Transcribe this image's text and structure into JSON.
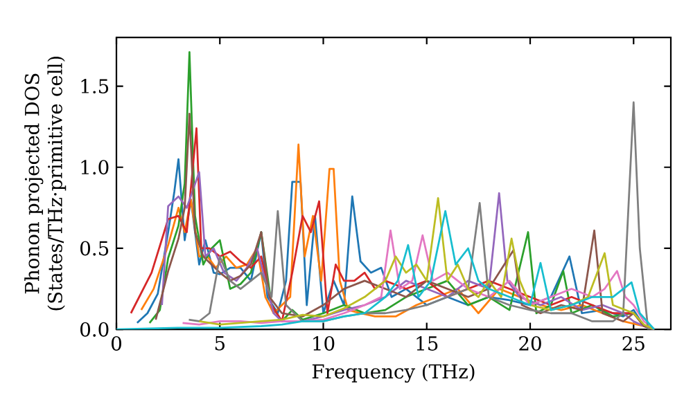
{
  "chart_data": {
    "type": "line",
    "xlabel": "Frequency (THz)",
    "ylabel": "Phonon projected DOS (States/THz·primitive cell)",
    "xlim": [
      0,
      26.8
    ],
    "ylim": [
      0,
      1.8
    ],
    "xticks": [
      0,
      5,
      10,
      15,
      20,
      25
    ],
    "yticks": [
      {
        "value": 0,
        "label": "0.0"
      },
      {
        "value": 0.5,
        "label": "0.5"
      },
      {
        "value": 1,
        "label": "1.0"
      },
      {
        "value": 1.5,
        "label": "1.5"
      }
    ],
    "series": [
      {
        "color": "#1f77b4",
        "x": [
          1,
          1.5,
          2,
          2.5,
          2.8,
          3.0,
          3.3,
          3.6,
          4.0,
          4.3,
          4.7,
          5.0,
          5.5,
          6.0,
          6.5,
          7.0,
          7.3,
          7.8,
          8.2,
          8.5,
          8.9,
          9.2,
          9.6,
          10.0,
          10.5,
          11.0,
          11.4,
          11.8,
          12.3,
          12.8,
          13.3,
          14,
          15,
          16,
          17,
          18,
          19,
          20,
          21,
          21.9,
          22.5,
          23.5,
          24.5,
          25,
          25.5,
          26
        ],
        "values": [
          0.04,
          0.1,
          0.22,
          0.6,
          0.85,
          1.05,
          0.55,
          0.8,
          0.4,
          0.55,
          0.35,
          0.34,
          0.38,
          0.38,
          0.3,
          0.6,
          0.2,
          0.1,
          0.3,
          0.91,
          0.91,
          0.15,
          0.7,
          0.1,
          0.3,
          0.15,
          0.82,
          0.42,
          0.35,
          0.38,
          0.2,
          0.25,
          0.15,
          0.2,
          0.15,
          0.2,
          0.18,
          0.15,
          0.2,
          0.45,
          0.1,
          0.12,
          0.08,
          0.12,
          0.02,
          0
        ]
      },
      {
        "color": "#ff7f0e",
        "x": [
          1.2,
          1.8,
          2.5,
          3.0,
          3.3,
          3.6,
          4.0,
          4.4,
          4.8,
          5.3,
          5.8,
          6.3,
          6.8,
          7.2,
          7.6,
          8.0,
          8.4,
          8.8,
          9.1,
          9.5,
          9.9,
          10.3,
          10.5,
          10.8,
          11.2,
          11.8,
          12.5,
          13.5,
          14.5,
          15.5,
          16.5,
          17.5,
          18.5,
          19.5,
          20.5,
          21.5,
          22.5,
          23.5,
          24.5,
          25.5,
          26
        ],
        "values": [
          0.12,
          0.25,
          0.52,
          0.75,
          0.6,
          0.8,
          0.45,
          0.45,
          0.38,
          0.45,
          0.38,
          0.4,
          0.5,
          0.2,
          0.1,
          0.15,
          0.2,
          1.14,
          0.45,
          0.7,
          0.3,
          0.99,
          0.99,
          0.3,
          0.12,
          0.1,
          0.08,
          0.08,
          0.15,
          0.2,
          0.25,
          0.1,
          0.25,
          0.2,
          0.15,
          0.12,
          0.15,
          0.1,
          0.05,
          0.02,
          0
        ]
      },
      {
        "color": "#2ca02c",
        "x": [
          1.6,
          2.1,
          2.5,
          3.0,
          3.3,
          3.53,
          3.8,
          4.2,
          4.6,
          5.0,
          5.5,
          6.0,
          6.5,
          7.0,
          7.5,
          8.0,
          8.5,
          9,
          10,
          11,
          12,
          13,
          14,
          15,
          16,
          17,
          18,
          19,
          19.9,
          20.3,
          21,
          21.6,
          22,
          23,
          24,
          25,
          25.5,
          26
        ],
        "values": [
          0.04,
          0.12,
          0.44,
          0.64,
          0.9,
          1.71,
          0.7,
          0.4,
          0.5,
          0.55,
          0.25,
          0.28,
          0.35,
          0.6,
          0.15,
          0.05,
          0.12,
          0.06,
          0.1,
          0.15,
          0.1,
          0.12,
          0.2,
          0.25,
          0.3,
          0.15,
          0.2,
          0.12,
          0.6,
          0.1,
          0.15,
          0.36,
          0.1,
          0.15,
          0.08,
          0.1,
          0.02,
          0
        ]
      },
      {
        "color": "#d62728",
        "x": [
          0.7,
          1.7,
          2.5,
          3.0,
          3.4,
          3.87,
          4.1,
          4.5,
          5.0,
          5.5,
          6.0,
          6.5,
          7.0,
          7.5,
          8.0,
          8.5,
          9.0,
          9.4,
          9.8,
          10.2,
          10.6,
          11.0,
          11.5,
          12,
          12.5,
          13,
          14,
          15,
          16,
          17,
          18,
          19,
          20,
          21,
          22,
          23,
          24,
          25,
          25.5,
          26
        ],
        "values": [
          0.1,
          0.35,
          0.68,
          0.7,
          0.6,
          1.24,
          0.5,
          0.5,
          0.45,
          0.48,
          0.42,
          0.38,
          0.45,
          0.15,
          0.05,
          0.35,
          0.7,
          0.6,
          0.79,
          0.1,
          0.4,
          0.3,
          0.3,
          0.35,
          0.25,
          0.3,
          0.25,
          0.3,
          0.2,
          0.25,
          0.3,
          0.25,
          0.2,
          0.15,
          0.2,
          0.15,
          0.1,
          0.1,
          0.02,
          0
        ]
      },
      {
        "color": "#9467bd",
        "x": [
          2.2,
          2.5,
          3.0,
          3.4,
          4.0,
          4.3,
          4.7,
          5.2,
          5.8,
          6.3,
          6.8,
          7.2,
          7.6,
          8,
          9,
          10,
          11,
          12,
          13,
          14,
          15,
          16,
          17,
          18,
          18.5,
          18.9,
          19.5,
          20.5,
          21.5,
          22.5,
          23.5,
          24.5,
          25,
          25.5,
          26
        ],
        "values": [
          0.15,
          0.76,
          0.82,
          0.75,
          0.97,
          0.45,
          0.5,
          0.35,
          0.3,
          0.38,
          0.5,
          0.3,
          0.1,
          0.05,
          0.05,
          0.08,
          0.12,
          0.15,
          0.2,
          0.3,
          0.25,
          0.2,
          0.3,
          0.25,
          0.84,
          0.3,
          0.2,
          0.15,
          0.2,
          0.12,
          0.15,
          0.1,
          0.05,
          0.02,
          0
        ]
      },
      {
        "color": "#8c564b",
        "x": [
          1.9,
          2.5,
          3.0,
          3.3,
          3.53,
          3.8,
          4.2,
          4.6,
          5.0,
          5.5,
          6.0,
          6.5,
          7.0,
          7.4,
          8,
          9,
          10,
          11,
          12,
          13,
          14,
          15,
          16,
          17,
          18,
          19.2,
          19.6,
          20.5,
          21.5,
          22.5,
          23.1,
          23.5,
          24.5,
          25,
          25.5,
          26
        ],
        "values": [
          0.06,
          0.36,
          0.56,
          0.75,
          1.33,
          0.6,
          0.45,
          0.4,
          0.35,
          0.3,
          0.33,
          0.4,
          0.6,
          0.2,
          0.1,
          0.08,
          0.15,
          0.25,
          0.3,
          0.25,
          0.2,
          0.3,
          0.25,
          0.2,
          0.25,
          0.49,
          0.15,
          0.1,
          0.15,
          0.12,
          0.61,
          0.1,
          0.05,
          0.1,
          0.02,
          0
        ]
      },
      {
        "color": "#e377c2",
        "x": [
          3.2,
          4,
          5,
          6,
          7,
          8,
          9,
          10,
          11,
          12,
          12.8,
          13.25,
          13.7,
          14.3,
          14.8,
          15.3,
          16,
          17,
          18,
          19,
          20,
          21,
          22,
          23,
          23.6,
          24.2,
          24.6,
          25,
          25.5,
          26
        ],
        "values": [
          0.04,
          0.03,
          0.05,
          0.05,
          0.04,
          0.05,
          0.05,
          0.06,
          0.1,
          0.15,
          0.2,
          0.61,
          0.25,
          0.3,
          0.58,
          0.3,
          0.35,
          0.25,
          0.2,
          0.3,
          0.15,
          0.2,
          0.25,
          0.2,
          0.25,
          0.36,
          0.2,
          0.15,
          0.05,
          0
        ]
      },
      {
        "color": "#7f7f7f",
        "x": [
          3.5,
          4,
          4.5,
          5,
          5.5,
          6,
          6.5,
          7,
          7.5,
          7.8,
          8.2,
          8.6,
          9,
          10,
          11,
          12,
          13,
          14,
          15,
          16,
          17,
          17.56,
          18,
          19,
          20,
          21,
          22,
          23,
          24,
          24.5,
          25,
          25.3,
          25.7,
          26
        ],
        "values": [
          0.06,
          0.05,
          0.1,
          0.45,
          0.3,
          0.25,
          0.3,
          0.35,
          0.2,
          0.73,
          0.15,
          0.1,
          0.05,
          0.05,
          0.08,
          0.1,
          0.1,
          0.12,
          0.15,
          0.2,
          0.25,
          0.78,
          0.2,
          0.15,
          0.12,
          0.1,
          0.1,
          0.05,
          0.05,
          0.1,
          1.4,
          0.5,
          0,
          0
        ]
      },
      {
        "color": "#bcbd22",
        "x": [
          4,
          5,
          7,
          8,
          9,
          10,
          11,
          12,
          13,
          13.5,
          14,
          14.5,
          15,
          15.55,
          16,
          16.5,
          17,
          17.5,
          18,
          18.6,
          19.1,
          19.5,
          20,
          21,
          22,
          22.8,
          23.6,
          24,
          25,
          25.5,
          26
        ],
        "values": [
          0.05,
          0.03,
          0.05,
          0.06,
          0.09,
          0.08,
          0.13,
          0.2,
          0.3,
          0.45,
          0.35,
          0.4,
          0.3,
          0.81,
          0.3,
          0.4,
          0.25,
          0.2,
          0.3,
          0.2,
          0.56,
          0.3,
          0.15,
          0.12,
          0.15,
          0.2,
          0.47,
          0.15,
          0.1,
          0.03,
          0
        ]
      },
      {
        "color": "#17becf",
        "x": [
          0,
          3,
          5,
          7,
          8,
          9,
          10,
          11,
          12,
          13,
          13.6,
          14.1,
          14.6,
          15.2,
          15.9,
          16.4,
          17,
          17.5,
          18,
          19,
          20,
          20.5,
          21,
          22,
          23,
          24,
          24.5,
          24.9,
          25.3,
          26
        ],
        "values": [
          0,
          0.01,
          0.01,
          0.02,
          0.03,
          0.05,
          0.05,
          0.08,
          0.1,
          0.2,
          0.3,
          0.52,
          0.2,
          0.3,
          0.73,
          0.4,
          0.5,
          0.3,
          0.25,
          0.2,
          0.15,
          0.41,
          0.12,
          0.15,
          0.2,
          0.2,
          0.25,
          0.29,
          0.1,
          0
        ]
      }
    ]
  }
}
